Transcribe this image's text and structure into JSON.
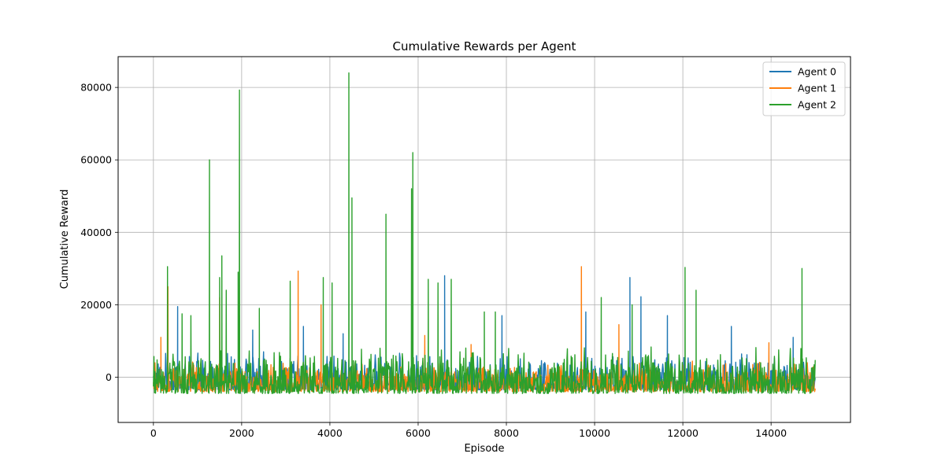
{
  "chart_data": {
    "type": "line",
    "title": "Cumulative Rewards per Agent",
    "xlabel": "Episode",
    "ylabel": "Cumulative Reward",
    "xlim": [
      -800,
      15800
    ],
    "ylim": [
      -12500,
      88500
    ],
    "xticks": [
      0,
      2000,
      4000,
      6000,
      8000,
      10000,
      12000,
      14000
    ],
    "yticks": [
      0,
      20000,
      40000,
      60000,
      80000
    ],
    "grid": true,
    "legend_position": "top-right",
    "n_episodes": 15000,
    "series": [
      {
        "name": "Agent 0",
        "color": "#1f77b4",
        "band": {
          "low": -3500,
          "high": 7000
        },
        "spikes": [
          [
            550,
            19500
          ],
          [
            1950,
            17000
          ],
          [
            2250,
            13000
          ],
          [
            3400,
            14000
          ],
          [
            4300,
            12000
          ],
          [
            6600,
            28000
          ],
          [
            7900,
            17000
          ],
          [
            9800,
            18000
          ],
          [
            10800,
            27500
          ],
          [
            11050,
            22200
          ],
          [
            11650,
            17000
          ],
          [
            13100,
            14000
          ],
          [
            14500,
            11000
          ]
        ]
      },
      {
        "name": "Agent 1",
        "color": "#ff7f0e",
        "band": {
          "low": -4000,
          "high": 4500
        },
        "spikes": [
          [
            170,
            11000
          ],
          [
            330,
            25000
          ],
          [
            1500,
            22000
          ],
          [
            3280,
            29300
          ],
          [
            3800,
            20000
          ],
          [
            6150,
            11500
          ],
          [
            7200,
            9000
          ],
          [
            9700,
            30500
          ],
          [
            10550,
            14500
          ],
          [
            13950,
            9500
          ]
        ]
      },
      {
        "name": "Agent 2",
        "color": "#2ca02c",
        "band": {
          "low": -4500,
          "high": 9000
        },
        "spikes": [
          [
            320,
            30500
          ],
          [
            650,
            17500
          ],
          [
            850,
            17000
          ],
          [
            1270,
            60000
          ],
          [
            1500,
            27500
          ],
          [
            1550,
            33500
          ],
          [
            1650,
            24000
          ],
          [
            1920,
            29000
          ],
          [
            1950,
            79300
          ],
          [
            2400,
            19000
          ],
          [
            3100,
            26500
          ],
          [
            3850,
            27500
          ],
          [
            4050,
            26000
          ],
          [
            4430,
            84000
          ],
          [
            4500,
            49500
          ],
          [
            5270,
            45000
          ],
          [
            5850,
            52000
          ],
          [
            5880,
            62000
          ],
          [
            6230,
            27000
          ],
          [
            6450,
            26000
          ],
          [
            6750,
            27000
          ],
          [
            7500,
            18000
          ],
          [
            7750,
            18000
          ],
          [
            10150,
            22000
          ],
          [
            10850,
            20000
          ],
          [
            12050,
            30300
          ],
          [
            12300,
            24000
          ],
          [
            14700,
            30000
          ]
        ]
      }
    ]
  }
}
